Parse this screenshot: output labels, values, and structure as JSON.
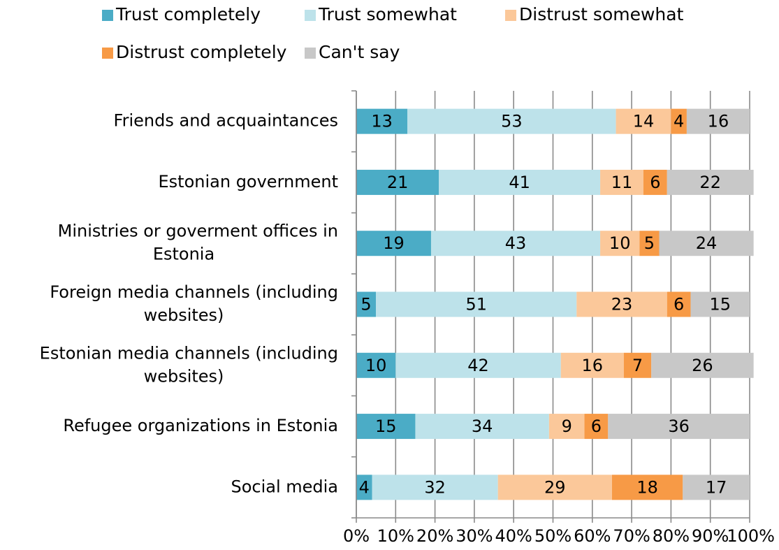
{
  "chart_data": {
    "type": "bar",
    "orientation": "horizontal",
    "stacked": "percent",
    "title": "",
    "xlabel": "",
    "ylabel": "",
    "xlim": [
      0,
      100
    ],
    "grid": "vertical",
    "legend_position": "top",
    "x_ticks": [
      "0%",
      "10%",
      "20%",
      "30%",
      "40%",
      "50%",
      "60%",
      "70%",
      "80%",
      "90%",
      "100%"
    ],
    "categories": [
      [
        "Friends and acquaintances"
      ],
      [
        "Estonian government"
      ],
      [
        "Ministries or goverment offices in",
        "Estonia"
      ],
      [
        "Foreign media channels (including",
        "websites)"
      ],
      [
        "Estonian media channels (including",
        "websites)"
      ],
      [
        "Refugee organizations in Estonia"
      ],
      [
        "Social media"
      ]
    ],
    "series": [
      {
        "name": "Trust completely",
        "color": "#4bacc6",
        "values": [
          13,
          21,
          19,
          5,
          10,
          15,
          4
        ]
      },
      {
        "name": "Trust somewhat",
        "color": "#bde2ea",
        "values": [
          53,
          41,
          43,
          51,
          42,
          34,
          32
        ]
      },
      {
        "name": "Distrust somewhat",
        "color": "#fbc89a",
        "values": [
          14,
          11,
          10,
          23,
          16,
          9,
          29
        ]
      },
      {
        "name": "Distrust completely",
        "color": "#f79a46",
        "values": [
          4,
          6,
          5,
          6,
          7,
          6,
          18
        ]
      },
      {
        "name": "Can't say",
        "color": "#c8c8c8",
        "values": [
          16,
          22,
          24,
          15,
          26,
          36,
          17
        ]
      }
    ]
  }
}
